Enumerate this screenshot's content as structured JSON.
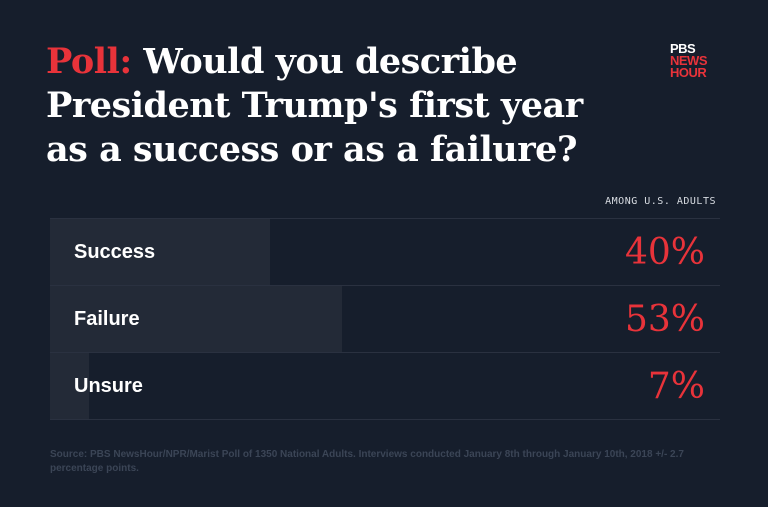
{
  "header": {
    "highlight": "Poll:",
    "title": " Would you describe President Trump's first year as a success or as a failure?"
  },
  "logo": {
    "line1": "PBS",
    "line2": "NEWS",
    "line3": "HOUR"
  },
  "subtitle": "AMONG U.S. ADULTS",
  "chart_data": {
    "type": "bar",
    "orientation": "horizontal",
    "categories": [
      "Success",
      "Failure",
      "Unsure"
    ],
    "values": [
      40,
      53,
      7
    ],
    "labels": [
      "40%",
      "53%",
      "7%"
    ],
    "colors": {
      "bar": "#232a37",
      "value": "#e8333a",
      "background": "#161e2c"
    }
  },
  "source": "Source: PBS NewsHour/NPR/Marist Poll of 1350 National Adults. Interviews conducted January 8th through January 10th, 2018  +/- 2.7 percentage points."
}
